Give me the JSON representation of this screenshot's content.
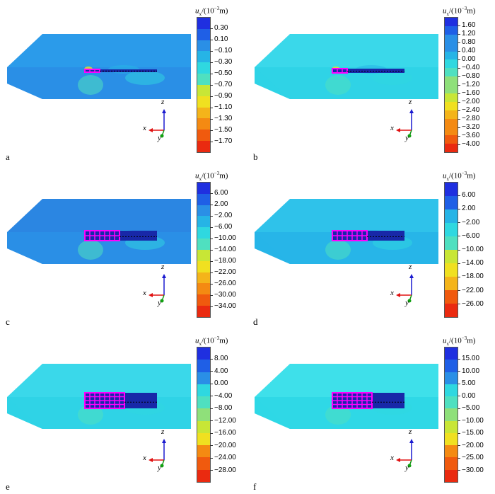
{
  "legend": {
    "var": "u",
    "sub": "x",
    "prefix": "/(10",
    "exp": "−3",
    "unit": "m)"
  },
  "axes": {
    "x": "x",
    "y": "y",
    "z": "z"
  },
  "panels": [
    {
      "label": "a",
      "ticks": [
        "0.30",
        "0.10",
        "−0.10",
        "−0.30",
        "−0.50",
        "−0.70",
        "−0.90",
        "−1.10",
        "−1.30",
        "−1.50",
        "−1.70"
      ]
    },
    {
      "label": "b",
      "ticks": [
        "1.60",
        "1.20",
        "0.80",
        "0.40",
        "0.00",
        "−0.40",
        "−0.80",
        "−1.20",
        "−1.60",
        "−2.00",
        "−2.40",
        "−2.80",
        "−3.20",
        "−3.60",
        "−4.00"
      ]
    },
    {
      "label": "c",
      "ticks": [
        "6.00",
        "2.00",
        "−2.00",
        "−6.00",
        "−10.00",
        "−14.00",
        "−18.00",
        "−22.00",
        "−26.00",
        "−30.00",
        "−34.00"
      ]
    },
    {
      "label": "d",
      "ticks": [
        "6.00",
        "2.00",
        "−2.00",
        "−6.00",
        "−10.00",
        "−14.00",
        "−18.00",
        "−22.00",
        "−26.00"
      ]
    },
    {
      "label": "e",
      "ticks": [
        "8.00",
        "4.00",
        "0.00",
        "−4.00",
        "−8.00",
        "−12.00",
        "−16.00",
        "−20.00",
        "−24.00",
        "−28.00"
      ]
    },
    {
      "label": "f",
      "ticks": [
        "15.00",
        "10.00",
        "5.00",
        "0.00",
        "−5.00",
        "−10.00",
        "−15.00",
        "−20.00",
        "−25.00",
        "−30.00"
      ]
    }
  ],
  "colors": {
    "colormap": [
      "#1f2fe0",
      "#1f5fe6",
      "#2a8fe6",
      "#26b4e6",
      "#2fd8e0",
      "#4fe0c0",
      "#8fe07a",
      "#c8e636",
      "#f0e020",
      "#f4b41a",
      "#f48a12",
      "#f05a0e",
      "#ea2a10"
    ],
    "grid": "#ff00ff",
    "gridline": "#8a2be2"
  }
}
